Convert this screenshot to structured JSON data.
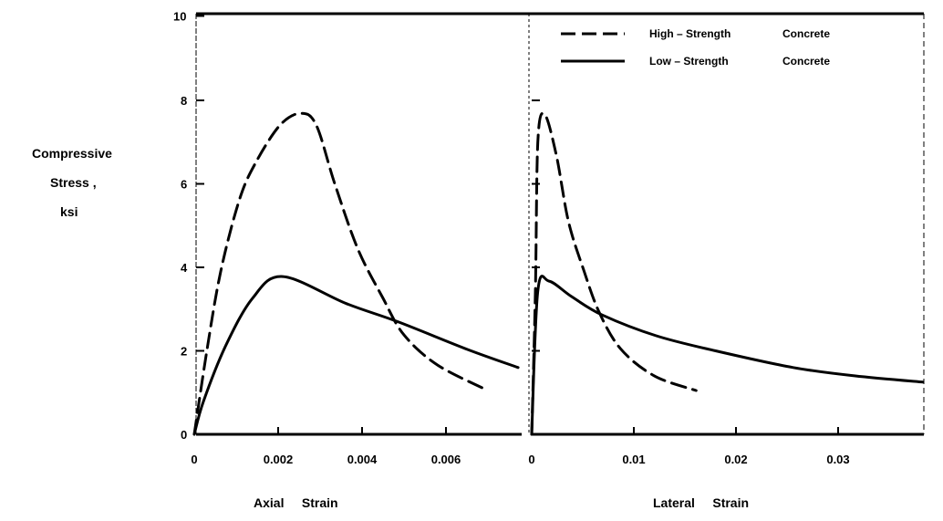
{
  "chart_data": {
    "type": "line",
    "ylabel_lines": [
      "Compressive",
      "Stress ,",
      "ksi"
    ],
    "ylim": [
      0,
      10
    ],
    "yticks": [
      "0",
      "2",
      "4",
      "6",
      "8",
      "10"
    ],
    "yticks_values": [
      0,
      2,
      4,
      6,
      8,
      10
    ],
    "legend": {
      "placement": "top-right",
      "entries": [
        {
          "name": "High – Strength",
          "name2": "Concrete",
          "style": "dashed"
        },
        {
          "name": "Low – Strength",
          "name2": "Concrete",
          "style": "solid"
        }
      ]
    },
    "panels": [
      {
        "xlabel": "Axial     Strain",
        "xlim": [
          0,
          0.0078
        ],
        "xticks": [
          "0",
          "0.002",
          "0.004",
          "0.006"
        ],
        "xticks_values": [
          0,
          0.002,
          0.004,
          0.006
        ],
        "series": [
          {
            "name": "High-Strength Concrete",
            "style": "dashed",
            "x": [
              0,
              0.0003,
              0.00063,
              0.00107,
              0.00146,
              0.00204,
              0.00254,
              0.00291,
              0.00335,
              0.0039,
              0.0045,
              0.005,
              0.0058,
              0.007
            ],
            "y": [
              0,
              2.0,
              3.9,
              5.6,
              6.5,
              7.4,
              7.69,
              7.4,
              6.0,
              4.44,
              3.26,
              2.38,
              1.66,
              1.05
            ]
          },
          {
            "name": "Low-Strength Concrete",
            "style": "solid",
            "x": [
              0,
              0.00022,
              0.00074,
              0.00139,
              0.00211,
              0.00363,
              0.00487,
              0.00652,
              0.00772
            ],
            "y": [
              0,
              0.79,
              2.1,
              3.26,
              3.78,
              3.13,
              2.69,
              2.03,
              1.6
            ]
          }
        ]
      },
      {
        "xlabel": "Lateral     Strain",
        "xlim": [
          0,
          0.0384
        ],
        "xticks": [
          "0",
          "0.01",
          "0.02",
          "0.03"
        ],
        "xticks_values": [
          0,
          0.01,
          0.02,
          0.03
        ],
        "series": [
          {
            "name": "High-Strength Concrete",
            "style": "dashed",
            "x": [
              0,
              0.00036,
              0.0006,
              0.00125,
              0.0024,
              0.0036,
              0.0051,
              0.0066,
              0.0087,
              0.012,
              0.0161
            ],
            "y": [
              0,
              3.37,
              7.0,
              7.67,
              6.7,
              5.1,
              3.93,
              2.93,
              2.05,
              1.4,
              1.05
            ]
          },
          {
            "name": "Low-Strength Concrete",
            "style": "solid",
            "x": [
              0,
              0.0006,
              0.0017,
              0.0039,
              0.0069,
              0.0122,
              0.0182,
              0.0256,
              0.0316,
              0.0383
            ],
            "y": [
              0,
              3.43,
              3.67,
              3.3,
              2.86,
              2.36,
              1.99,
              1.6,
              1.4,
              1.25
            ]
          }
        ]
      }
    ]
  }
}
